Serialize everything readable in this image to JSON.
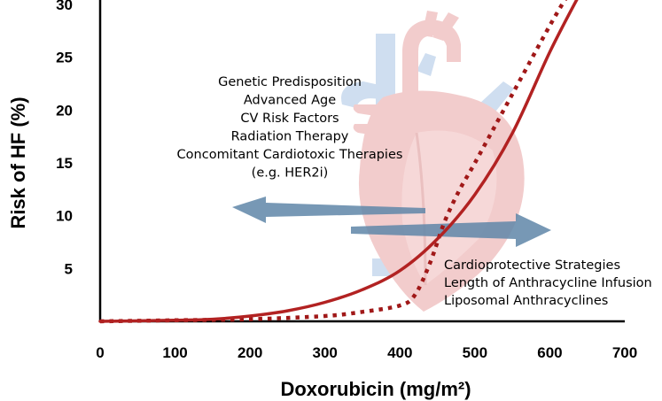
{
  "chart_data": {
    "type": "line",
    "xlabel": "Doxorubicin (mg/m²)",
    "ylabel": "Risk of HF (%)",
    "xlim": [
      0,
      700
    ],
    "ylim": [
      0,
      30
    ],
    "x_ticks": [
      0,
      100,
      200,
      300,
      400,
      500,
      600,
      700
    ],
    "y_ticks": [
      5,
      10,
      15,
      20,
      25,
      30
    ],
    "grid": false,
    "legend": "none",
    "series": [
      {
        "style": "solid",
        "color": "#b22222",
        "x": [
          0,
          100,
          150,
          200,
          250,
          300,
          350,
          400,
          450,
          500,
          550,
          600,
          640
        ],
        "y": [
          0,
          0.1,
          0.2,
          0.5,
          1.0,
          1.8,
          3.0,
          4.8,
          7.8,
          12.0,
          17.8,
          25.5,
          31
        ]
      },
      {
        "style": "dotted",
        "color": "#a01818",
        "x": [
          0,
          100,
          200,
          300,
          350,
          400,
          420,
          440,
          460,
          480,
          500,
          550,
          600,
          625
        ],
        "y": [
          0,
          0.1,
          0.2,
          0.5,
          0.9,
          1.5,
          2.5,
          5.5,
          9.5,
          12.5,
          15.0,
          21.5,
          28.0,
          31
        ]
      }
    ],
    "annotations": {
      "risk_factors": [
        "Genetic Predisposition",
        "Advanced Age",
        "CV Risk Factors",
        "Radiation Therapy",
        "Concomitant Cardiotoxic Therapies",
        "(e.g. HER2i)"
      ],
      "protective_factors": [
        "Cardioprotective Strategies",
        "Length of Anthracycline Infusion",
        "Liposomal Anthracyclines"
      ]
    }
  },
  "colors": {
    "curve_solid": "#b22222",
    "curve_dotted": "#a01818",
    "arrow": "#5f86a8",
    "heart_red": "#e9a3a3",
    "heart_blue": "#a9c4e4"
  }
}
